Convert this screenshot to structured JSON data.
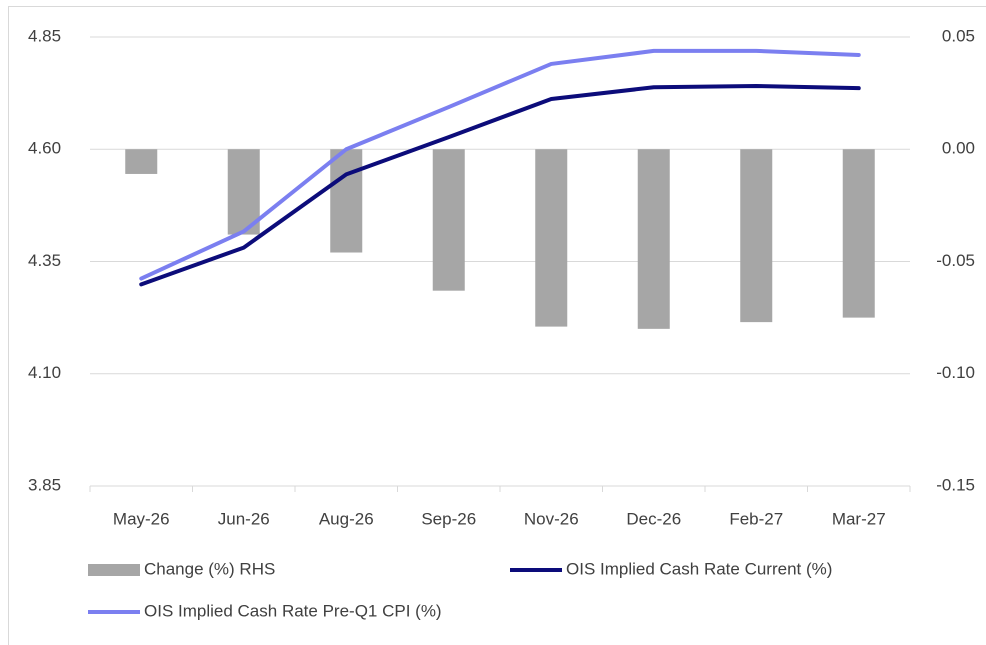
{
  "chart_data": {
    "type": "combo",
    "categories": [
      "May-26",
      "Jun-26",
      "Aug-26",
      "Sep-26",
      "Nov-26",
      "Dec-26",
      "Feb-27",
      "Mar-27"
    ],
    "series": [
      {
        "name": "Change (%) RHS",
        "type": "bar",
        "axis": "y2",
        "color": "#a6a6a6",
        "values": [
          -0.011,
          -0.038,
          -0.046,
          -0.063,
          -0.079,
          -0.08,
          -0.077,
          -0.075
        ]
      },
      {
        "name": "OIS Implied Cash Rate Current (%)",
        "type": "line",
        "color": "#0c0c7a",
        "values": [
          4.299,
          4.381,
          4.544,
          4.627,
          4.712,
          4.738,
          4.741,
          4.736
        ]
      },
      {
        "name": "OIS Implied Cash Rate Pre-Q1 CPI (%)",
        "type": "line",
        "color": "#7b7ff0",
        "values": [
          4.312,
          4.417,
          4.6,
          4.694,
          4.79,
          4.819,
          4.819,
          4.81
        ]
      }
    ],
    "ylim": [
      3.85,
      4.85
    ],
    "yticks": [
      3.85,
      {
        "value": 4.1,
        "label": "4.10"
      },
      4.35,
      {
        "value": 4.6,
        "label": "4.60"
      },
      4.85
    ],
    "y2lim": [
      -0.15,
      0.05
    ],
    "y2ticks": [
      -0.15,
      {
        "value": -0.1,
        "label": "-0.10"
      },
      -0.05,
      {
        "value": 0,
        "label": "0.00"
      },
      0.05
    ],
    "grid": true
  }
}
